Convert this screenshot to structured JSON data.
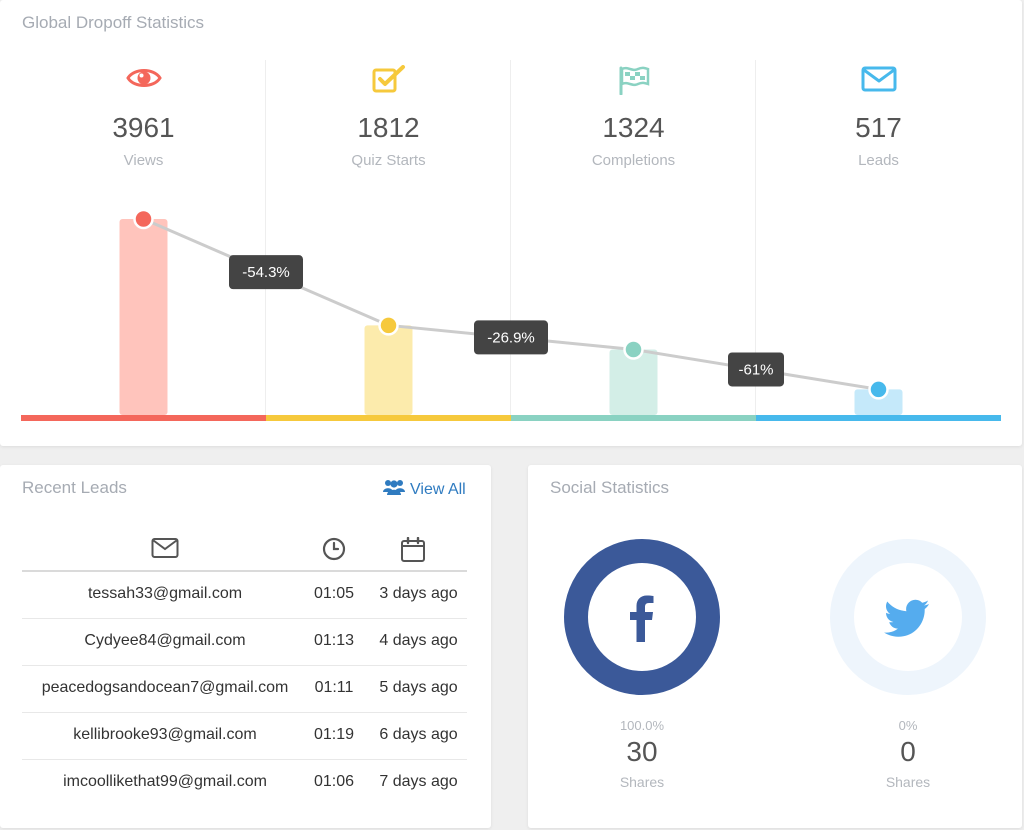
{
  "dropoff": {
    "title": "Global Dropoff Statistics",
    "stages": [
      {
        "icon": "eye-icon",
        "count": "3961",
        "label": "Views",
        "color": "#f4675b",
        "bar_color": "#ffc4bc",
        "value": 3961
      },
      {
        "icon": "checkbox-icon",
        "count": "1812",
        "label": "Quiz Starts",
        "color": "#f6c93c",
        "bar_color": "#fcebac",
        "value": 1812
      },
      {
        "icon": "flag-icon",
        "count": "1324",
        "label": "Completions",
        "color": "#8ad2c2",
        "bar_color": "#d3eee7",
        "value": 1324
      },
      {
        "icon": "envelope-icon",
        "count": "517",
        "label": "Leads",
        "color": "#47b9ec",
        "bar_color": "#c5e9fa",
        "value": 517
      }
    ],
    "dropoffs": [
      "-54.3%",
      "-26.9%",
      "-61%"
    ]
  },
  "chart_data": {
    "type": "bar",
    "categories": [
      "Views",
      "Quiz Starts",
      "Completions",
      "Leads"
    ],
    "values": [
      3961,
      1812,
      1324,
      517
    ],
    "title": "Global Dropoff Statistics",
    "annotations": [
      "-54.3%",
      "-26.9%",
      "-61%"
    ],
    "grid": false,
    "legend": "none"
  },
  "leads": {
    "title": "Recent Leads",
    "view_all_label": "View All",
    "header_icons": [
      "envelope-icon",
      "clock-icon",
      "calendar-icon"
    ],
    "rows": [
      {
        "email": "tessah33@gmail.com",
        "time": "01:05",
        "date": "3 days ago"
      },
      {
        "email": "Cydyee84@gmail.com",
        "time": "01:13",
        "date": "4 days ago"
      },
      {
        "email": "peacedogsandocean7@gmail.com",
        "time": "01:11",
        "date": "5 days ago"
      },
      {
        "email": "kellibrooke93@gmail.com",
        "time": "01:19",
        "date": "6 days ago"
      },
      {
        "email": "imcoollikethat99@gmail.com",
        "time": "01:06",
        "date": "7 days ago"
      }
    ]
  },
  "social": {
    "title": "Social Statistics",
    "networks": [
      {
        "name": "facebook",
        "icon": "facebook-icon",
        "percent": "100.0%",
        "count": "30",
        "label": "Shares",
        "color": "#3b5999",
        "share": 1.0
      },
      {
        "name": "twitter",
        "icon": "twitter-icon",
        "percent": "0%",
        "count": "0",
        "label": "Shares",
        "color": "#55acee",
        "share": 0.0
      }
    ]
  }
}
